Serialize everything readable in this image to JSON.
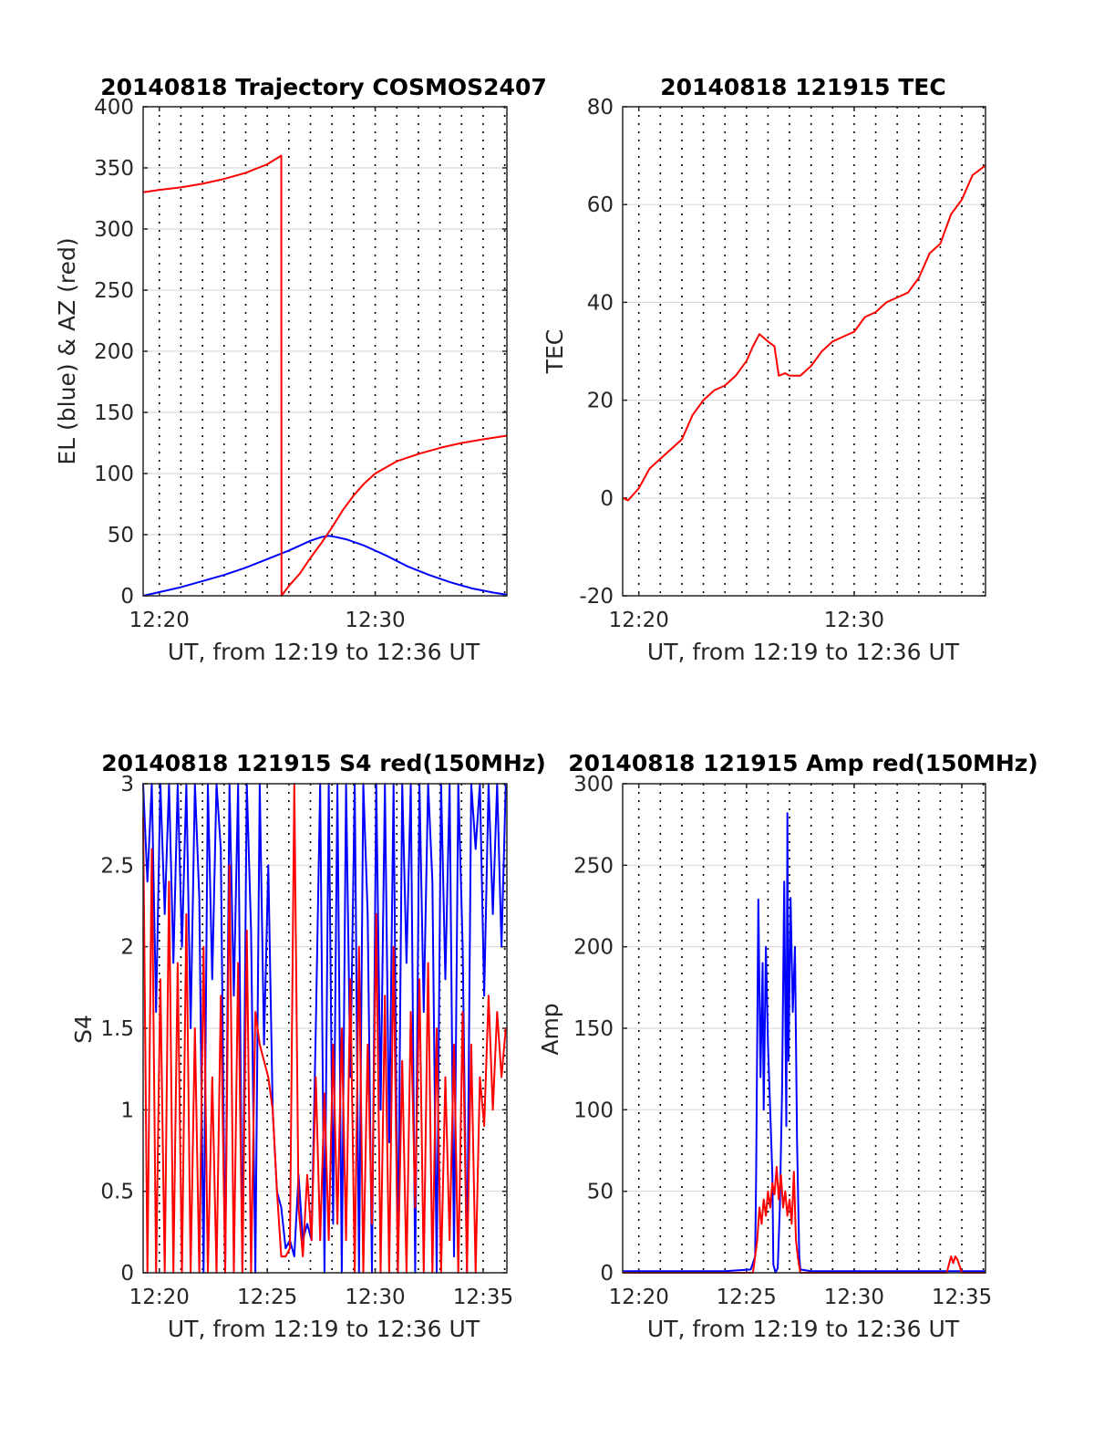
{
  "colors": {
    "red": "#ff0000",
    "blue": "#0000ff",
    "grid": "#000000",
    "frame": "#262626"
  },
  "chart_data": [
    {
      "id": "trajectory",
      "type": "line",
      "title": "20140818 Trajectory COSMOS2407",
      "xlabel": "UT, from 12:19 to 12:36 UT",
      "ylabel": "EL (blue) & AZ (red)",
      "xlim": [
        19.25,
        36.1
      ],
      "ylim": [
        0,
        400
      ],
      "xticks": [
        20,
        30
      ],
      "xtick_labels": [
        "12:20",
        "12:30"
      ],
      "yticks": [
        0,
        50,
        100,
        150,
        200,
        250,
        300,
        350,
        400
      ],
      "ytick_labels": [
        "0",
        "50",
        "100",
        "150",
        "200",
        "250",
        "300",
        "350",
        "400"
      ],
      "grid": true,
      "series": [
        {
          "color": "#0000ff",
          "x": [
            19.25,
            20,
            21,
            22,
            23,
            24,
            25,
            26,
            26.5,
            27,
            27.5,
            27.85,
            28.2,
            28.7,
            29.5,
            30.5,
            31.5,
            32.5,
            33.5,
            34.5,
            35.5,
            36.1
          ],
          "y": [
            0,
            3,
            7,
            12,
            17,
            23,
            30,
            37,
            41,
            45,
            48,
            49,
            48,
            46,
            41,
            33,
            24,
            17,
            11,
            6,
            2.5,
            1
          ]
        },
        {
          "color": "#ff0000",
          "x": [
            19.25,
            20,
            21,
            22,
            23,
            24,
            25,
            25.65,
            25.66,
            26,
            26.5,
            27,
            27.5,
            28,
            28.5,
            29,
            29.5,
            30,
            31,
            32,
            33,
            34,
            35,
            36.1
          ],
          "y": [
            330,
            332,
            334,
            337,
            341,
            346,
            353,
            360,
            0,
            8,
            18,
            31,
            43,
            56,
            70,
            82,
            92,
            100,
            110,
            116,
            121,
            125,
            128,
            131
          ]
        }
      ]
    },
    {
      "id": "tec",
      "type": "line",
      "title": "20140818 121915 TEC",
      "xlabel": "UT, from 12:19 to 12:36 UT",
      "ylabel": "TEC",
      "xlim": [
        19.25,
        36.1
      ],
      "ylim": [
        -20,
        80
      ],
      "xticks": [
        20,
        30
      ],
      "xtick_labels": [
        "12:20",
        "12:30"
      ],
      "yticks": [
        -20,
        0,
        20,
        40,
        60,
        80
      ],
      "ytick_labels": [
        "-20",
        "0",
        "20",
        "40",
        "60",
        "80"
      ],
      "grid": true,
      "series": [
        {
          "color": "#ff0000",
          "x": [
            19.25,
            19.5,
            20,
            20.5,
            21,
            21.5,
            22,
            22.5,
            23,
            23.5,
            24,
            24.5,
            25,
            25.3,
            25.6,
            26,
            26.3,
            26.5,
            26.8,
            27,
            27.5,
            28,
            28.5,
            29,
            29.5,
            30,
            30.5,
            31,
            31.5,
            32,
            32.5,
            33,
            33.5,
            34,
            34.5,
            35,
            35.5,
            36.1
          ],
          "y": [
            0,
            -0.5,
            2,
            6,
            8,
            10,
            12,
            17,
            20,
            22,
            23,
            25,
            28,
            31,
            33.5,
            32,
            31,
            25,
            25.5,
            25,
            25,
            27,
            30,
            32,
            33,
            34,
            37,
            38,
            40,
            41,
            42,
            45,
            50,
            52,
            58,
            61,
            66,
            68
          ]
        }
      ]
    },
    {
      "id": "s4",
      "type": "line",
      "title": "20140818 121915 S4 red(150MHz)",
      "xlabel": "UT, from 12:19 to 12:36 UT",
      "ylabel": "S4",
      "xlim": [
        19.25,
        36.1
      ],
      "ylim": [
        0,
        3
      ],
      "xticks": [
        20,
        25,
        30,
        35
      ],
      "xtick_labels": [
        "12:20",
        "12:25",
        "12:30",
        "12:35"
      ],
      "yticks": [
        0,
        0.5,
        1,
        1.5,
        2,
        2.5,
        3
      ],
      "ytick_labels": [
        "0",
        "0.5",
        "1",
        "1.5",
        "2",
        "2.5",
        "3"
      ],
      "grid": true,
      "series": [
        {
          "color": "#0000ff",
          "x": [
            19.25,
            19.45,
            19.65,
            19.85,
            20.05,
            20.25,
            20.45,
            20.65,
            20.85,
            21.05,
            21.25,
            21.45,
            21.65,
            21.85,
            22.05,
            22.25,
            22.45,
            22.65,
            22.85,
            23.05,
            23.25,
            23.45,
            23.65,
            23.85,
            24.05,
            24.25,
            24.45,
            24.65,
            24.85,
            25.05,
            25.25,
            25.45,
            25.65,
            25.85,
            26.05,
            26.25,
            26.45,
            26.65,
            26.85,
            27.05,
            27.25,
            27.45,
            27.65,
            27.85,
            28.05,
            28.25,
            28.45,
            28.65,
            28.85,
            29.05,
            29.25,
            29.45,
            29.65,
            29.85,
            30.05,
            30.25,
            30.45,
            30.65,
            30.85,
            31.05,
            31.25,
            31.45,
            31.65,
            31.85,
            32.05,
            32.25,
            32.45,
            32.65,
            32.85,
            33.05,
            33.25,
            33.45,
            33.65,
            33.85,
            34.05,
            34.25,
            34.45,
            34.65,
            34.85,
            35.05,
            35.25,
            35.45,
            35.65,
            35.85,
            36.05
          ],
          "y": [
            3,
            2.4,
            3,
            1.6,
            3,
            2.2,
            3,
            1.9,
            3,
            2.0,
            3,
            1.5,
            3,
            2.3,
            0,
            3,
            1.8,
            3,
            2.6,
            0,
            3,
            1.7,
            3,
            0,
            3,
            2.1,
            0,
            3,
            1.4,
            2.5,
            1.0,
            0.5,
            0.4,
            0.15,
            0.2,
            0.1,
            0.6,
            0.2,
            0.3,
            0.2,
            1.5,
            3,
            0,
            3,
            0.3,
            3,
            0,
            3,
            1.2,
            3,
            0,
            3,
            2.2,
            0,
            3,
            1.0,
            3,
            0.8,
            3,
            0,
            3,
            1.9,
            3,
            0,
            3,
            1.6,
            3,
            2.4,
            0,
            3,
            1.8,
            3,
            0.1,
            3,
            2.0,
            0,
            3,
            2.6,
            3,
            1.7,
            3,
            2.2,
            3,
            2.0,
            3
          ]
        },
        {
          "color": "#ff0000",
          "x": [
            19.25,
            19.45,
            19.65,
            19.85,
            20.05,
            20.25,
            20.45,
            20.65,
            20.85,
            21.05,
            21.25,
            21.45,
            21.65,
            21.85,
            22.05,
            22.25,
            22.45,
            22.65,
            22.85,
            23.05,
            23.25,
            23.45,
            23.65,
            23.85,
            24.05,
            24.25,
            24.45,
            24.65,
            24.85,
            25.05,
            25.25,
            25.45,
            25.65,
            25.85,
            26.05,
            26.25,
            26.45,
            26.65,
            26.85,
            27.05,
            27.25,
            27.45,
            27.65,
            27.85,
            28.05,
            28.25,
            28.45,
            28.65,
            28.85,
            29.05,
            29.25,
            29.45,
            29.65,
            29.85,
            30.05,
            30.25,
            30.45,
            30.65,
            30.85,
            31.05,
            31.25,
            31.45,
            31.65,
            31.85,
            32.05,
            32.25,
            32.45,
            32.65,
            32.85,
            33.05,
            33.25,
            33.45,
            33.65,
            33.85,
            34.05,
            34.25,
            34.45,
            34.65,
            34.85,
            35.05,
            35.25,
            35.45,
            35.65,
            35.85,
            36.05
          ],
          "y": [
            2.8,
            0,
            2.6,
            0,
            1.8,
            0,
            2.4,
            0,
            1.9,
            0,
            2.2,
            0,
            1.5,
            0,
            2.0,
            0,
            1.2,
            0,
            1.7,
            0,
            2.5,
            0,
            1.9,
            0,
            2.1,
            0,
            1.6,
            1.4,
            1.3,
            1.2,
            1.0,
            0.5,
            0.1,
            0.1,
            0.15,
            3,
            0.4,
            0.1,
            0.6,
            0.2,
            1.2,
            0.2,
            1.1,
            0.2,
            1.4,
            0.3,
            1.5,
            0.2,
            1.8,
            0,
            2.0,
            0,
            1.4,
            0.3,
            2.2,
            0,
            1.7,
            0,
            2.0,
            0,
            1.3,
            0,
            1.6,
            0.4,
            1.8,
            0,
            1.9,
            0,
            1.5,
            0,
            1.2,
            0.2,
            1.4,
            0,
            1.6,
            0,
            1.4,
            0,
            1.2,
            0.9,
            1.7,
            1.0,
            1.6,
            1.2,
            1.5
          ]
        }
      ]
    },
    {
      "id": "amp",
      "type": "line",
      "title": "20140818 121915 Amp red(150MHz)",
      "xlabel": "UT, from 12:19 to 12:36 UT",
      "ylabel": "Amp",
      "xlim": [
        19.25,
        36.1
      ],
      "ylim": [
        0,
        300
      ],
      "xticks": [
        20,
        25,
        30,
        35
      ],
      "xtick_labels": [
        "12:20",
        "12:25",
        "12:30",
        "12:35"
      ],
      "yticks": [
        0,
        50,
        100,
        150,
        200,
        250,
        300
      ],
      "ytick_labels": [
        "0",
        "50",
        "100",
        "150",
        "200",
        "250",
        "300"
      ],
      "grid": true,
      "series": [
        {
          "color": "#0000ff",
          "x": [
            19.25,
            22,
            24,
            25.2,
            25.4,
            25.45,
            25.55,
            25.65,
            25.75,
            25.8,
            25.9,
            26.0,
            26.1,
            26.2,
            26.25,
            26.35,
            26.45,
            26.55,
            26.65,
            26.75,
            26.85,
            26.9,
            26.95,
            27.05,
            27.15,
            27.25,
            27.35,
            27.45,
            27.5,
            28,
            30,
            32,
            34,
            36.1
          ],
          "y": [
            1,
            1,
            1,
            2,
            10,
            60,
            229,
            120,
            190,
            100,
            200,
            140,
            100,
            60,
            5,
            0,
            3,
            40,
            110,
            240,
            90,
            282,
            130,
            230,
            160,
            200,
            80,
            10,
            2,
            1,
            1,
            1,
            1,
            1
          ]
        },
        {
          "color": "#ff0000",
          "x": [
            19.25,
            25.3,
            25.5,
            25.6,
            25.7,
            25.8,
            25.9,
            26.0,
            26.1,
            26.2,
            26.3,
            26.4,
            26.5,
            26.6,
            26.7,
            26.8,
            26.9,
            27.0,
            27.1,
            27.2,
            27.3,
            27.4,
            27.5,
            34.3,
            34.4,
            34.5,
            34.6,
            34.7,
            34.8,
            34.9,
            35.0,
            36.1
          ],
          "y": [
            0,
            0,
            20,
            40,
            30,
            45,
            35,
            50,
            40,
            55,
            48,
            65,
            45,
            60,
            40,
            50,
            35,
            45,
            30,
            62,
            20,
            8,
            0,
            0,
            5,
            10,
            6,
            10,
            8,
            4,
            0,
            0
          ]
        }
      ]
    }
  ]
}
